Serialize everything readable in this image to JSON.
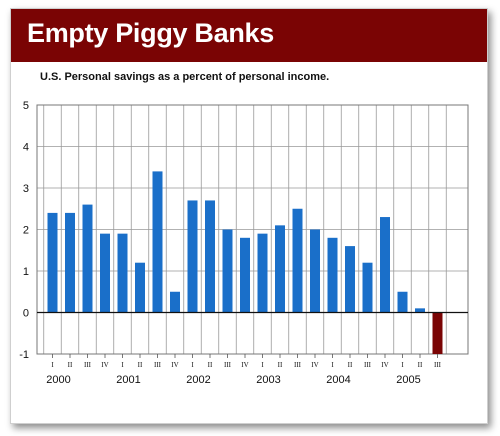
{
  "title": "Empty Piggy Banks",
  "subtitle": "U.S. Personal savings as a percent of personal income.",
  "colors": {
    "banner": "#7a0404",
    "bar_positive": "#1a6fc9",
    "bar_negative": "#7a0404",
    "grid": "#999999"
  },
  "chart_data": {
    "type": "bar",
    "grid": true,
    "ylim": [
      -1,
      5
    ],
    "yticks": [
      "-1",
      "0",
      "1",
      "2",
      "3",
      "4",
      "5"
    ],
    "quarter_labels": [
      "I",
      "II",
      "III",
      "IV",
      "I",
      "II",
      "III",
      "IV",
      "I",
      "II",
      "III",
      "IV",
      "I",
      "II",
      "III",
      "IV",
      "I",
      "II",
      "III",
      "IV",
      "I",
      "II",
      "III"
    ],
    "year_labels": [
      {
        "label": "2000",
        "first_quarter_index": 0
      },
      {
        "label": "2001",
        "first_quarter_index": 4
      },
      {
        "label": "2002",
        "first_quarter_index": 8
      },
      {
        "label": "2003",
        "first_quarter_index": 12
      },
      {
        "label": "2004",
        "first_quarter_index": 16
      },
      {
        "label": "2005",
        "first_quarter_index": 20
      }
    ],
    "categories": [
      "2000 I",
      "2000 II",
      "2000 III",
      "2000 IV",
      "2001 I",
      "2001 II",
      "2001 III",
      "2001 IV",
      "2002 I",
      "2002 II",
      "2002 III",
      "2002 IV",
      "2003 I",
      "2003 II",
      "2003 III",
      "2003 IV",
      "2004 I",
      "2004 II",
      "2004 III",
      "2004 IV",
      "2005 I",
      "2005 II",
      "2005 III"
    ],
    "values": [
      2.4,
      2.4,
      2.6,
      1.9,
      1.9,
      1.2,
      3.4,
      0.5,
      2.7,
      2.7,
      2.0,
      1.8,
      1.9,
      2.1,
      2.5,
      2.0,
      1.8,
      1.6,
      1.2,
      2.3,
      0.5,
      0.1,
      -1.0
    ]
  }
}
